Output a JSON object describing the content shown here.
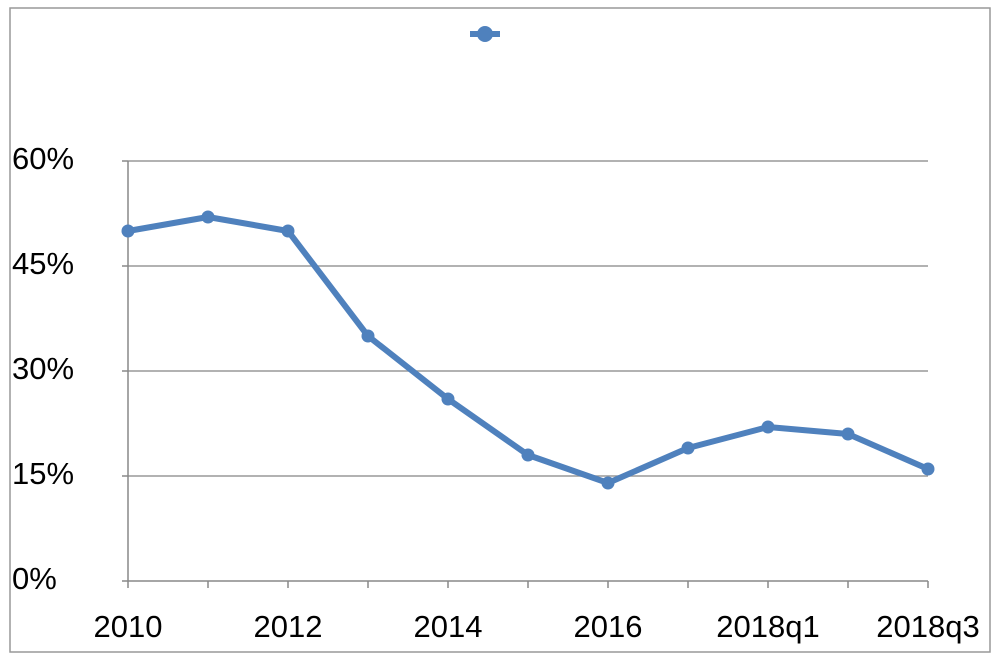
{
  "chart_data": {
    "type": "line",
    "categories": [
      "2010",
      null,
      "2012",
      null,
      "2014",
      null,
      "2016",
      null,
      "2018q1",
      null,
      "2018q3"
    ],
    "values": [
      50,
      52,
      50,
      35,
      26,
      18,
      14,
      19,
      22,
      21,
      16
    ],
    "color": "#4f81bd",
    "ylim": [
      0,
      60
    ],
    "yticks": [
      {
        "value": 0,
        "label": "0%"
      },
      {
        "value": 15,
        "label": "15%"
      },
      {
        "value": 30,
        "label": "30%"
      },
      {
        "value": 45,
        "label": "45%"
      },
      {
        "value": 60,
        "label": "60%"
      }
    ],
    "grid": true,
    "legend": "top"
  }
}
